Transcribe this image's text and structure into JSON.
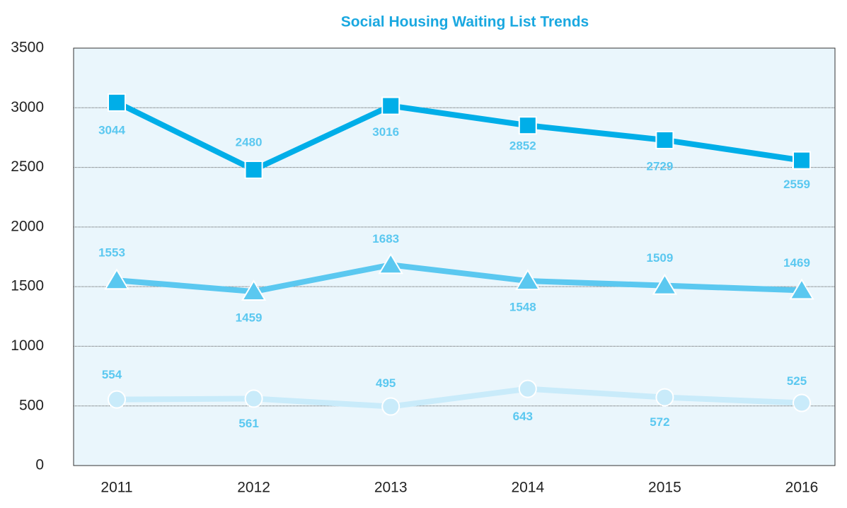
{
  "chart_data": {
    "type": "line",
    "title": "Social Housing Waiting List Trends",
    "categories": [
      "2011",
      "2012",
      "2013",
      "2014",
      "2015",
      "2016"
    ],
    "series": [
      {
        "color": "#00aee8",
        "marker": "square",
        "values": [
          3044,
          2480,
          3016,
          2852,
          2729,
          2559
        ]
      },
      {
        "color": "#5bc8f0",
        "marker": "triangle",
        "values": [
          1553,
          1459,
          1683,
          1548,
          1509,
          1469
        ]
      },
      {
        "color": "#c9ebfa",
        "marker": "circle",
        "values": [
          554,
          561,
          495,
          643,
          572,
          525
        ]
      }
    ],
    "ylim": [
      0,
      3500
    ],
    "yticks": [
      0,
      500,
      1000,
      1500,
      2000,
      2500,
      3000,
      3500
    ],
    "grid": true
  }
}
